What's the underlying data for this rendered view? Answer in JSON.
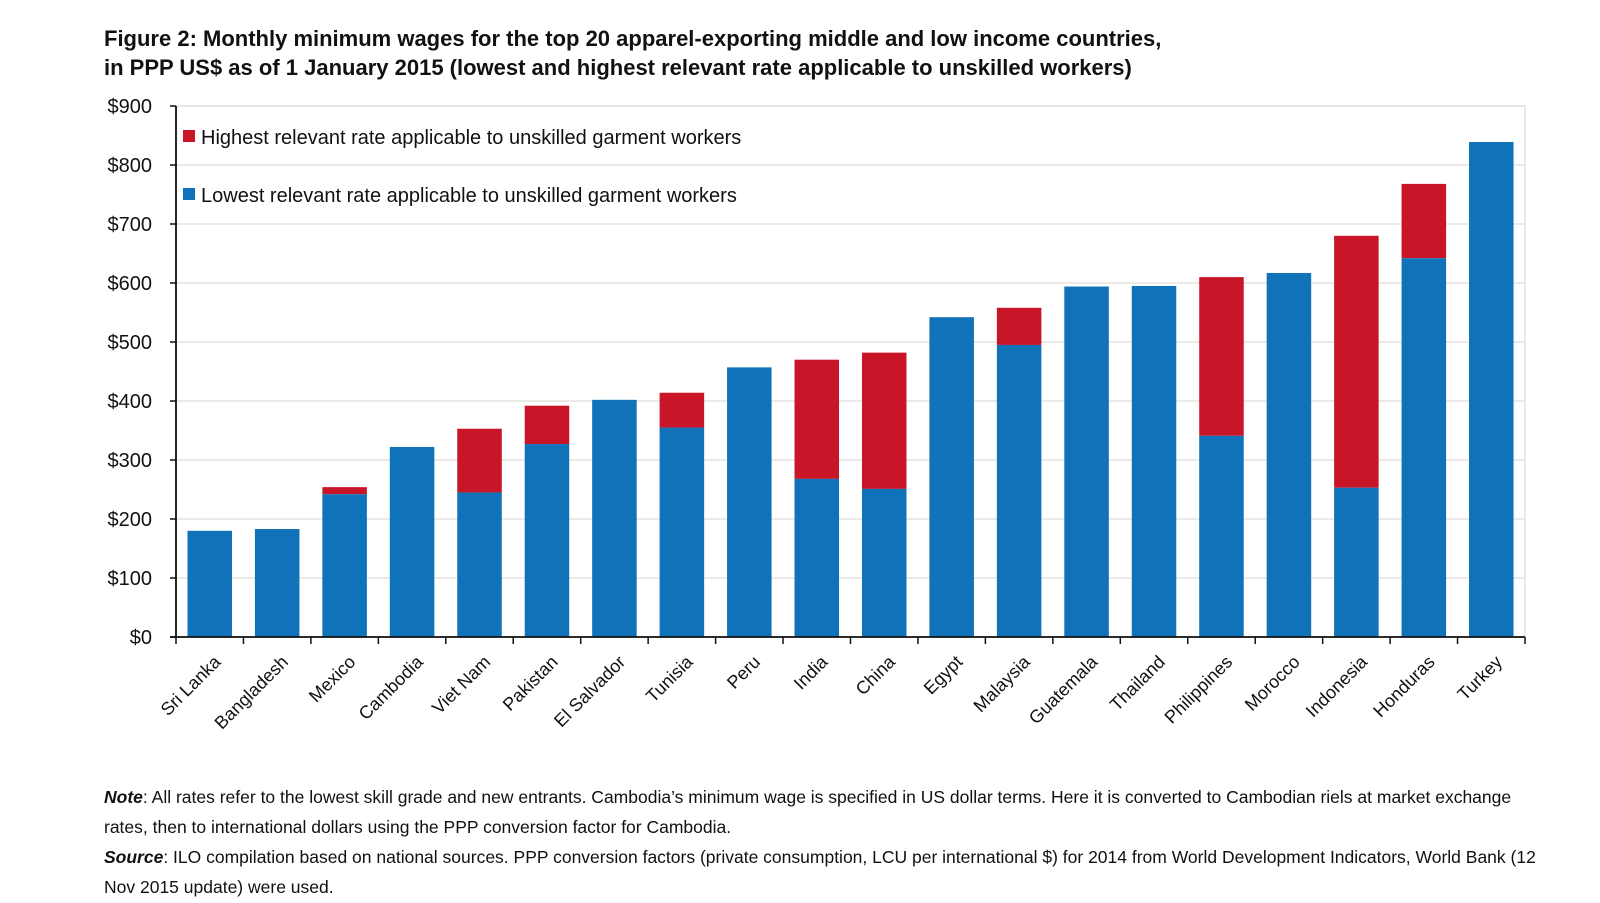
{
  "chart_data": {
    "type": "bar",
    "stacked": true,
    "title": "Figure 2: Monthly minimum wages for the top 20 apparel-exporting middle and low income countries,",
    "subtitle": "in PPP US$ as of 1 January 2015 (lowest and highest relevant rate applicable to unskilled workers)",
    "xlabel": "",
    "ylabel": "",
    "ylim": [
      0,
      900
    ],
    "yticks": [
      0,
      100,
      200,
      300,
      400,
      500,
      600,
      700,
      800,
      900
    ],
    "ytick_labels": [
      "$0",
      "$100",
      "$200",
      "$300",
      "$400",
      "$500",
      "$600",
      "$700",
      "$800",
      "$900"
    ],
    "grid": true,
    "legend_position": "top-left",
    "categories": [
      "Sri Lanka",
      "Bangladesh",
      "Mexico",
      "Cambodia",
      "Viet Nam",
      "Pakistan",
      "El Salvador",
      "Tunisia",
      "Peru",
      "India",
      "China",
      "Egypt",
      "Malaysia",
      "Guatemala",
      "Thailand",
      "Philippines",
      "Morocco",
      "Indonesia",
      "Honduras",
      "Turkey"
    ],
    "series": [
      {
        "name": "Lowest relevant rate applicable to unskilled garment workers",
        "color": "#1072b8",
        "values": [
          180,
          183,
          242,
          322,
          245,
          327,
          402,
          355,
          457,
          268,
          251,
          542,
          495,
          594,
          595,
          341,
          617,
          253,
          642,
          839
        ]
      },
      {
        "name": "Highest relevant rate applicable to unskilled garment workers",
        "color": "#c81527",
        "values": [
          180,
          183,
          254,
          322,
          353,
          392,
          402,
          414,
          457,
          470,
          482,
          542,
          558,
          594,
          595,
          610,
          617,
          680,
          768,
          839
        ]
      }
    ],
    "legend": [
      {
        "label": "Highest relevant rate applicable to unskilled garment workers",
        "color": "#c81527"
      },
      {
        "label": "Lowest relevant rate applicable to unskilled garment workers",
        "color": "#1072b8"
      }
    ]
  },
  "notes": {
    "note_label": "Note",
    "note_text": ": All rates refer to the lowest skill grade and new entrants. Cambodia’s minimum wage is specified in US dollar terms. Here it is converted to Cambodian riels at market exchange rates, then to international dollars using the PPP conversion factor for Cambodia.",
    "source_label": "Source",
    "source_text": ": ILO compilation based on national sources. PPP conversion factors (private consumption, LCU per international $) for 2014  from World Development Indicators, World Bank (12 Nov 2015 update) were used."
  }
}
